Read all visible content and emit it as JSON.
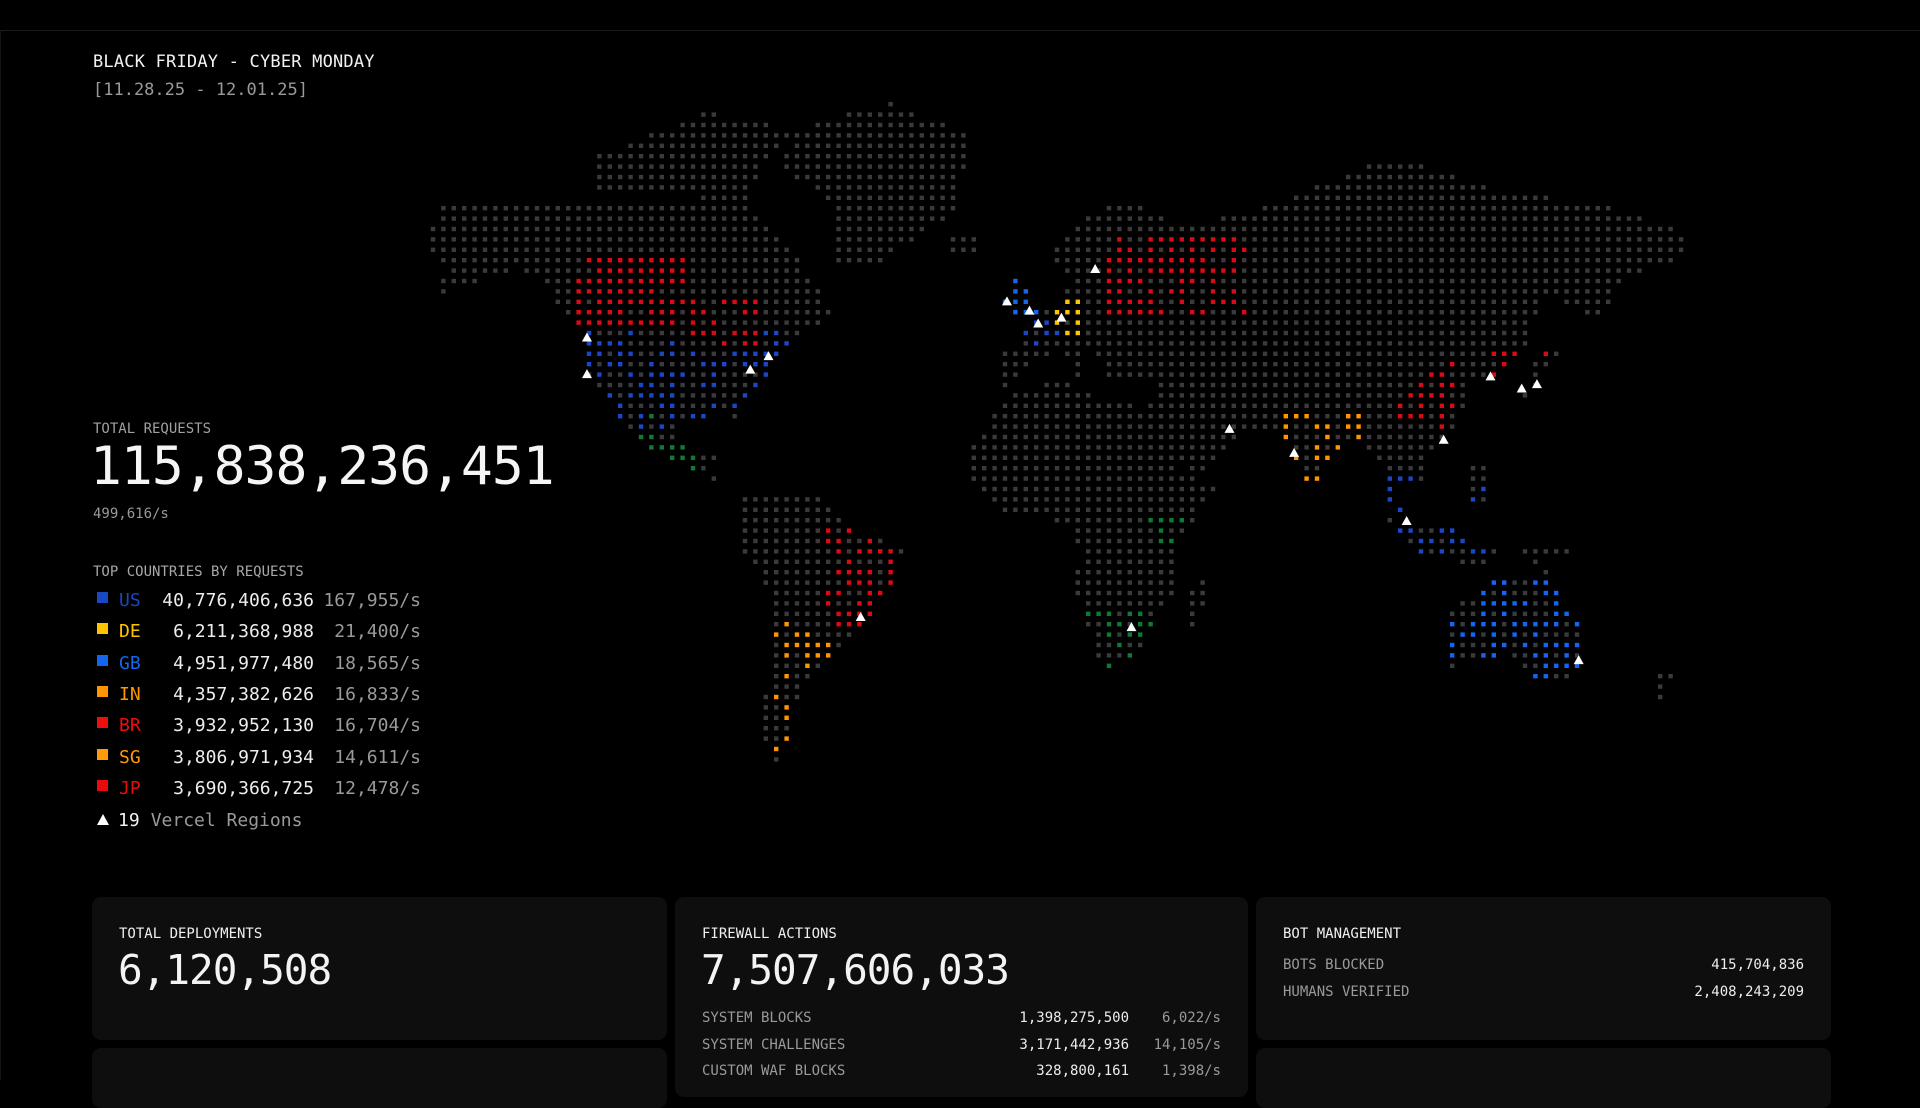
{
  "header": {
    "title": "BLACK FRIDAY - CYBER MONDAY",
    "dates": "[11.28.25 - 12.01.25]"
  },
  "total_requests": {
    "label": "TOTAL REQUESTS",
    "value": "115,838,236,451",
    "rate": "499,616/s"
  },
  "top_countries": {
    "label": "TOP COUNTRIES BY REQUESTS",
    "items": [
      {
        "code": "US",
        "value": "40,776,406,636",
        "rate": "167,955/s",
        "color": "#1a47c4"
      },
      {
        "code": "DE",
        "value": "6,211,368,988",
        "rate": "21,400/s",
        "color": "#ffc400"
      },
      {
        "code": "GB",
        "value": "4,951,977,480",
        "rate": "18,565/s",
        "color": "#1466f0"
      },
      {
        "code": "IN",
        "value": "4,357,382,626",
        "rate": "16,833/s",
        "color": "#ff9500"
      },
      {
        "code": "BR",
        "value": "3,932,952,130",
        "rate": "16,704/s",
        "color": "#f00d0d"
      },
      {
        "code": "SG",
        "value": "3,806,971,934",
        "rate": "14,611/s",
        "color": "#ff9a0a"
      },
      {
        "code": "JP",
        "value": "3,690,366,725",
        "rate": "12,478/s",
        "color": "#e80b0b"
      }
    ]
  },
  "regions": {
    "count": "19",
    "label": "Vercel Regions",
    "icon": "triangle-icon"
  },
  "map_colors": {
    "land": "#3a3a3a",
    "red": "#d80c14",
    "blue": "#1a47c4",
    "bright_blue": "#1466f0",
    "yellow": "#ffc400",
    "orange": "#ff9500",
    "green": "#0f7a35",
    "region_marker": "#ffffff"
  },
  "panels": {
    "deployments": {
      "title": "TOTAL DEPLOYMENTS",
      "value": "6,120,508"
    },
    "firewall": {
      "title": "FIREWALL ACTIONS",
      "value": "7,507,606,033",
      "rows": [
        {
          "label": "SYSTEM BLOCKS",
          "value": "1,398,275,500",
          "rate": "6,022/s"
        },
        {
          "label": "SYSTEM CHALLENGES",
          "value": "3,171,442,936",
          "rate": "14,105/s"
        },
        {
          "label": "CUSTOM WAF BLOCKS",
          "value": "328,800,161",
          "rate": "1,398/s"
        }
      ]
    },
    "bots": {
      "title": "BOT MANAGEMENT",
      "rows": [
        {
          "label": "BOTS BLOCKED",
          "value": "415,704,836"
        },
        {
          "label": "HUMANS VERIFIED",
          "value": "2,408,243,209"
        }
      ]
    }
  }
}
